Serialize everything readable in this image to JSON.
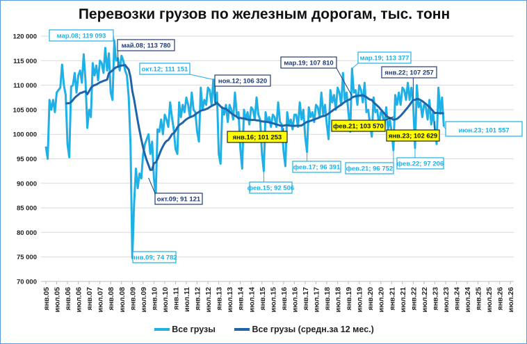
{
  "chart_data": {
    "type": "line",
    "title": "Перевозки грузов по железным дорогам, тыс. тонн",
    "ylim": [
      70000,
      120000
    ],
    "yticks": [
      "70 000",
      "75 000",
      "80 000",
      "85 000",
      "90 000",
      "95 000",
      "100 000",
      "105 000",
      "110 000",
      "115 000",
      "120 000"
    ],
    "grid": true,
    "legend_position": "bottom",
    "x_start": "янв.05",
    "x_frequency": "monthly",
    "xticks": [
      "янв.05",
      "июл.05",
      "янв.06",
      "июл.06",
      "янв.07",
      "июл.07",
      "янв.08",
      "июл.08",
      "янв.09",
      "июл.09",
      "янв.10",
      "июл.10",
      "янв.11",
      "июл.11",
      "янв.12",
      "июл.12",
      "янв.13",
      "июл.13",
      "янв.14",
      "июл.14",
      "янв.15",
      "июл.15",
      "янв.16",
      "июл.16",
      "янв.17",
      "июл.17",
      "янв.18",
      "июл.18",
      "янв.19",
      "июл.19",
      "янв.20",
      "июл.20",
      "янв.21",
      "июл.21",
      "янв.22",
      "июл.22",
      "янв.23",
      "июл.23",
      "янв.24",
      "июл.24",
      "янв.25",
      "июл.25",
      "янв.26",
      "июл.26"
    ],
    "series": [
      {
        "name": "Все грузы",
        "color": "#1fb0e6",
        "values": [
          97500,
          95000,
          107000,
          105000,
          107000,
          104500,
          108500,
          109000,
          109500,
          114200,
          110000,
          108000,
          98000,
          95300,
          109700,
          110000,
          112500,
          108500,
          112000,
          113000,
          110500,
          116300,
          111000,
          101300,
          105000,
          103500,
          114500,
          112000,
          114000,
          111000,
          115000,
          114500,
          112500,
          117600,
          113000,
          116500,
          108500,
          107000,
          119093,
          115000,
          115500,
          113000,
          116000,
          115000,
          113000,
          112000,
          107500,
          98000,
          74782,
          86000,
          93000,
          89000,
          92000,
          91000,
          96000,
          98000,
          99000,
          100000,
          96000,
          98500,
          91000,
          87500,
          101000,
          100500,
          103000,
          100000,
          104000,
          103000,
          101500,
          106500,
          103500,
          101000,
          97000,
          96000,
          106500,
          103500,
          106000,
          104500,
          107500,
          106000,
          103500,
          108500,
          105000,
          104500,
          100500,
          98500,
          109500,
          105000,
          107000,
          106000,
          109500,
          109000,
          106000,
          111151,
          106500,
          108500,
          96000,
          94000,
          105500,
          104000,
          106000,
          102500,
          106000,
          105000,
          103000,
          108500,
          104000,
          104500,
          97000,
          93000,
          105000,
          103000,
          104500,
          102000,
          105500,
          105000,
          103000,
          107500,
          104000,
          103000,
          96000,
          92506,
          104500,
          102500,
          103500,
          101500,
          104000,
          103500,
          101500,
          106500,
          102500,
          102000,
          96500,
          93500,
          104500,
          102000,
          103000,
          101000,
          104000,
          104000,
          101500,
          106500,
          103000,
          105000,
          99500,
          96391,
          105500,
          103500,
          104500,
          102500,
          106000,
          105500,
          103500,
          108500,
          104000,
          106000,
          102000,
          99000,
          109000,
          106500,
          108000,
          105000,
          109500,
          108500,
          106000,
          112500,
          107000,
          108500,
          104500,
          100500,
          113377,
          108500,
          109000,
          106000,
          110000,
          109000,
          106500,
          110500,
          104500,
          105000,
          102000,
          99500,
          107500,
          104500,
          105000,
          102000,
          104500,
          104000,
          101500,
          105500,
          101000,
          103000,
          100500,
          96752,
          108000,
          106000,
          108500,
          106000,
          109500,
          109000,
          107000,
          110500,
          107000,
          109500,
          106000,
          97206,
          110000,
          105500,
          106500,
          103500,
          106000,
          105500,
          103000,
          107000,
          102000,
          104500,
          101000,
          98000,
          109500,
          104500,
          107500,
          101557
        ]
      },
      {
        "name": "Все грузы (средн.за 12 мес.)",
        "color": "#1f63a8",
        "window": 12
      }
    ],
    "annotations": [
      {
        "text": "мар.08; 119 093",
        "month": "мар.08",
        "value": 119093,
        "style": "light"
      },
      {
        "text": "май.08;  113 780",
        "month": "май.08",
        "value": 113780,
        "style": "dark"
      },
      {
        "text": "янв.09; 74 782",
        "month": "янв.09",
        "value": 74782,
        "style": "light"
      },
      {
        "text": "окт.09;  91 121",
        "month": "окт.09",
        "value": 91121,
        "style": "dark"
      },
      {
        "text": "окт.12; 111 151",
        "month": "окт.12",
        "value": 111151,
        "style": "light"
      },
      {
        "text": "ноя.12;  106 320",
        "month": "ноя.12",
        "value": 106320,
        "style": "dark"
      },
      {
        "text": "фев.15; 92 506",
        "month": "фев.15",
        "value": 92506,
        "style": "light"
      },
      {
        "text": "янв.16;  101 253",
        "month": "янв.16",
        "value": 101253,
        "style": "yellow"
      },
      {
        "text": "фев.17; 96 391",
        "month": "фев.17",
        "value": 96391,
        "style": "light"
      },
      {
        "text": "мар.19;  107 810",
        "month": "мар.19",
        "value": 107810,
        "style": "dark"
      },
      {
        "text": "мар.19; 113 377",
        "month": "мар.19",
        "value": 113377,
        "style": "light"
      },
      {
        "text": "фев.21;  103 570",
        "month": "фев.21",
        "value": 103570,
        "style": "yellow"
      },
      {
        "text": "фев.21; 96 752",
        "month": "фев.21",
        "value": 96752,
        "style": "light"
      },
      {
        "text": "янв.22;  107 257",
        "month": "янв.22",
        "value": 107257,
        "style": "dark"
      },
      {
        "text": "фев.22; 97 206",
        "month": "фев.22",
        "value": 97206,
        "style": "light"
      },
      {
        "text": "янв.23;  102 629",
        "month": "янв.23",
        "value": 102629,
        "style": "yellow"
      },
      {
        "text": "июн.23; 101 557",
        "month": "июн.23",
        "value": 101557,
        "style": "light-large"
      }
    ]
  }
}
